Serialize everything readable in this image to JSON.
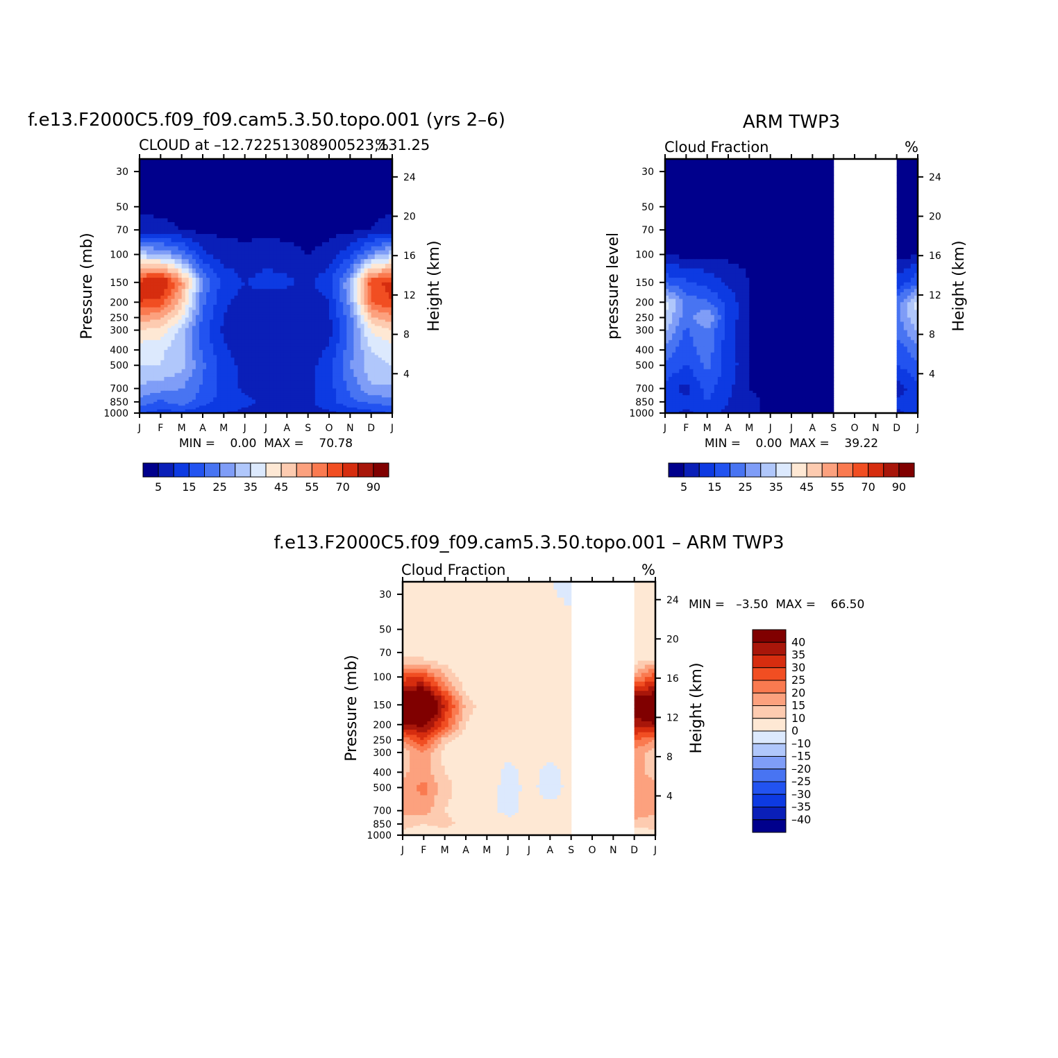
{
  "colors": {
    "model_obs_scale": [
      "#00008c",
      "#0a1fb8",
      "#0d3ae2",
      "#2253f0",
      "#4874f2",
      "#7f9df7",
      "#b0c7fb",
      "#dce9fd",
      "#fee8d4",
      "#fdcbb0",
      "#fca17e",
      "#fa7a50",
      "#f14e22",
      "#d62d0f",
      "#a8160a",
      "#800000"
    ],
    "diff_scale": [
      "#00008c",
      "#0a1fb8",
      "#0d3ae2",
      "#2253f0",
      "#4874f2",
      "#7f9df7",
      "#b0c7fb",
      "#dce9fd",
      "#fee8d4",
      "#fdcbb0",
      "#fca17e",
      "#fa7a50",
      "#f14e22",
      "#d62d0f",
      "#a8160a",
      "#800000"
    ]
  },
  "panels": {
    "model": {
      "title": "f.e13.F2000C5.f09_f09.cam5.3.50.topo.001 (yrs 2–6)",
      "subtitle": "CLOUD at –12.72251308900523,131.25",
      "units": "%",
      "ylabel": "Pressure (mb)",
      "y2label": "Height (km)",
      "minmax": "MIN =    0.00  MAX =    70.78"
    },
    "obs": {
      "title": "ARM TWP3",
      "subtitle": "Cloud Fraction",
      "units": "%",
      "ylabel": "pressure level",
      "y2label": "Height (km)",
      "minmax": "MIN =    0.00  MAX =    39.22"
    },
    "diff": {
      "title": "f.e13.F2000C5.f09_f09.cam5.3.50.topo.001 – ARM TWP3",
      "subtitle": "Cloud Fraction",
      "units": "%",
      "ylabel": "Pressure (mb)",
      "y2label": "Height (km)",
      "minmax": "MIN =   –3.50  MAX =    66.50"
    }
  },
  "chart_data": [
    {
      "type": "heatmap",
      "title": "f.e13.F2000C5.f09_f09.cam5.3.50.topo.001 (yrs 2–6)",
      "subtitle": "CLOUD at –12.72251308900523,131.25",
      "units": "%",
      "x_ticks": [
        "J",
        "F",
        "M",
        "A",
        "M",
        "J",
        "J",
        "A",
        "S",
        "O",
        "N",
        "D",
        "J"
      ],
      "y_ticks": [
        30,
        50,
        70,
        100,
        150,
        200,
        250,
        300,
        400,
        500,
        700,
        850,
        1000
      ],
      "y2_ticks": [
        24,
        20,
        16,
        12,
        8,
        4
      ],
      "ylabel": "Pressure (mb)",
      "y2label": "Height (km)",
      "y_scale": "log",
      "ylim": [
        1000,
        25
      ],
      "min": 0.0,
      "max": 70.78,
      "colorbar_labels": [
        "5",
        "15",
        "25",
        "35",
        "45",
        "55",
        "70",
        "90"
      ],
      "levels": [
        1,
        5,
        10,
        15,
        20,
        25,
        30,
        35,
        40,
        45,
        50,
        55,
        60,
        70,
        80,
        90
      ],
      "pressure_levels": [
        25,
        50,
        70,
        100,
        150,
        200,
        250,
        300,
        400,
        500,
        700,
        850,
        1000
      ],
      "months": [
        "J",
        "F",
        "M",
        "A",
        "M",
        "J",
        "J",
        "A",
        "S",
        "O",
        "N",
        "D",
        "J"
      ],
      "values": [
        [
          0,
          0,
          0,
          0,
          0,
          0,
          0,
          0,
          0,
          0,
          0,
          0,
          0
        ],
        [
          0,
          0,
          0,
          0,
          0,
          0,
          0,
          0,
          0,
          0,
          0,
          0,
          0
        ],
        [
          3,
          2,
          1,
          0,
          0,
          0,
          0,
          0,
          0,
          0,
          0,
          1,
          3
        ],
        [
          28,
          25,
          18,
          6,
          3,
          2,
          3,
          2,
          1,
          2,
          8,
          20,
          28
        ],
        [
          62,
          68,
          50,
          20,
          8,
          5,
          7,
          6,
          4,
          8,
          25,
          58,
          62
        ],
        [
          60,
          58,
          42,
          16,
          6,
          3,
          2,
          2,
          2,
          5,
          22,
          55,
          60
        ],
        [
          48,
          46,
          36,
          14,
          5,
          1,
          1,
          1,
          1,
          4,
          18,
          44,
          48
        ],
        [
          40,
          38,
          28,
          12,
          4,
          1,
          1,
          1,
          1,
          3,
          16,
          36,
          40
        ],
        [
          32,
          31,
          26,
          14,
          6,
          2,
          1,
          1,
          2,
          6,
          18,
          30,
          32
        ],
        [
          30,
          30,
          27,
          16,
          8,
          3,
          1,
          1,
          3,
          8,
          20,
          28,
          30
        ],
        [
          24,
          22,
          20,
          14,
          8,
          4,
          3,
          2,
          3,
          8,
          16,
          24,
          24
        ],
        [
          18,
          14,
          18,
          12,
          8,
          6,
          4,
          3,
          4,
          8,
          14,
          16,
          18
        ],
        [
          10,
          8,
          8,
          6,
          5,
          4,
          3,
          3,
          3,
          4,
          6,
          8,
          10
        ]
      ]
    },
    {
      "type": "heatmap",
      "title": "ARM TWP3",
      "subtitle": "Cloud Fraction",
      "units": "%",
      "x_ticks": [
        "J",
        "F",
        "M",
        "A",
        "M",
        "J",
        "J",
        "A",
        "S",
        "O",
        "N",
        "D",
        "J"
      ],
      "y_ticks": [
        30,
        50,
        70,
        100,
        150,
        200,
        250,
        300,
        400,
        500,
        700,
        850,
        1000
      ],
      "y2_ticks": [
        24,
        20,
        16,
        12,
        8,
        4
      ],
      "ylabel": "pressure level",
      "y2label": "Height (km)",
      "y_scale": "log",
      "ylim": [
        1000,
        25
      ],
      "min": 0.0,
      "max": 39.22,
      "missing_months": [
        "S",
        "O"
      ],
      "colorbar_labels": [
        "5",
        "15",
        "25",
        "35",
        "45",
        "55",
        "70",
        "90"
      ],
      "levels": [
        1,
        5,
        10,
        15,
        20,
        25,
        30,
        35,
        40,
        45,
        50,
        55,
        60,
        70,
        80,
        90
      ],
      "pressure_levels": [
        25,
        50,
        70,
        100,
        150,
        200,
        250,
        300,
        400,
        500,
        700,
        850,
        1000
      ],
      "months": [
        "J",
        "F",
        "M",
        "A",
        "M",
        "J",
        "J",
        "A",
        "S",
        "O",
        "N",
        "D",
        "J"
      ],
      "values": [
        [
          0,
          0,
          0,
          0,
          0,
          0,
          0,
          0,
          0,
          null,
          null,
          0,
          0
        ],
        [
          0,
          0,
          0,
          0,
          0,
          0,
          0,
          0,
          0,
          null,
          null,
          0,
          0
        ],
        [
          0,
          0,
          0,
          0,
          0,
          0,
          0,
          0,
          0,
          null,
          null,
          0,
          0
        ],
        [
          0,
          0,
          0,
          0,
          0,
          0,
          0,
          0,
          0,
          null,
          null,
          0,
          0
        ],
        [
          14,
          11,
          8,
          4,
          1,
          0,
          0,
          0,
          0,
          null,
          null,
          6,
          14
        ],
        [
          32,
          18,
          16,
          8,
          1,
          0,
          0,
          0,
          0,
          null,
          null,
          17,
          32
        ],
        [
          30,
          17,
          26,
          8,
          1,
          0,
          0,
          0,
          0,
          null,
          null,
          18,
          30
        ],
        [
          26,
          14,
          20,
          7,
          1,
          0,
          0,
          0,
          0,
          null,
          null,
          16,
          26
        ],
        [
          18,
          12,
          18,
          7,
          1,
          0,
          0,
          0,
          0,
          null,
          null,
          12,
          18
        ],
        [
          14,
          10,
          16,
          8,
          1,
          0,
          0,
          0,
          0,
          null,
          null,
          10,
          14
        ],
        [
          8,
          3,
          12,
          6,
          1,
          0,
          0,
          0,
          0,
          null,
          null,
          2,
          8
        ],
        [
          10,
          6,
          10,
          5,
          2,
          0,
          0,
          0,
          0,
          null,
          null,
          6,
          10
        ],
        [
          6,
          4,
          6,
          4,
          2,
          0,
          0,
          0,
          0,
          null,
          null,
          4,
          6
        ]
      ]
    },
    {
      "type": "heatmap",
      "title": "f.e13.F2000C5.f09_f09.cam5.3.50.topo.001 – ARM TWP3",
      "subtitle": "Cloud Fraction",
      "units": "%",
      "x_ticks": [
        "J",
        "F",
        "M",
        "A",
        "M",
        "J",
        "J",
        "A",
        "S",
        "O",
        "N",
        "D",
        "J"
      ],
      "y_ticks": [
        30,
        50,
        70,
        100,
        150,
        200,
        250,
        300,
        400,
        500,
        700,
        850,
        1000
      ],
      "y2_ticks": [
        24,
        20,
        16,
        12,
        8,
        4
      ],
      "ylabel": "Pressure (mb)",
      "y2label": "Height (km)",
      "y_scale": "log",
      "ylim": [
        1000,
        25
      ],
      "min": -3.5,
      "max": 66.5,
      "missing_months": [
        "S",
        "O"
      ],
      "colorbar_labels": [
        "40",
        "35",
        "30",
        "25",
        "20",
        "15",
        "10",
        "0",
        "–10",
        "–15",
        "–20",
        "–25",
        "–30",
        "–35",
        "–40"
      ],
      "levels": [
        -40,
        -35,
        -30,
        -25,
        -20,
        -15,
        -10,
        0,
        10,
        15,
        20,
        25,
        30,
        35,
        40
      ],
      "pressure_levels": [
        25,
        50,
        70,
        100,
        150,
        200,
        250,
        300,
        400,
        500,
        700,
        850,
        1000
      ],
      "months": [
        "J",
        "F",
        "M",
        "A",
        "M",
        "J",
        "J",
        "A",
        "S",
        "O",
        "N",
        "D",
        "J"
      ],
      "values": [
        [
          0,
          0,
          0,
          0,
          0,
          0,
          0,
          0,
          -1,
          null,
          null,
          0,
          0
        ],
        [
          2,
          2,
          2,
          2,
          1,
          1,
          1,
          1,
          1,
          null,
          null,
          2,
          2
        ],
        [
          4,
          4,
          3,
          2,
          2,
          2,
          2,
          2,
          2,
          null,
          null,
          3,
          4
        ],
        [
          28,
          28,
          16,
          5,
          3,
          2,
          2,
          2,
          2,
          null,
          null,
          18,
          28
        ],
        [
          50,
          60,
          34,
          14,
          5,
          4,
          4,
          4,
          4,
          null,
          null,
          48,
          50
        ],
        [
          40,
          42,
          28,
          10,
          4,
          3,
          2,
          2,
          2,
          null,
          null,
          36,
          40
        ],
        [
          20,
          30,
          12,
          6,
          3,
          2,
          2,
          2,
          2,
          null,
          null,
          26,
          20
        ],
        [
          12,
          20,
          8,
          5,
          3,
          2,
          2,
          2,
          2,
          null,
          null,
          18,
          12
        ],
        [
          14,
          18,
          10,
          6,
          4,
          -2,
          2,
          -2,
          2,
          null,
          null,
          16,
          14
        ],
        [
          16,
          22,
          12,
          7,
          4,
          -3,
          2,
          -3,
          2,
          null,
          null,
          16,
          16
        ],
        [
          16,
          18,
          10,
          7,
          2,
          -2,
          2,
          2,
          2,
          null,
          null,
          20,
          16
        ],
        [
          12,
          10,
          12,
          8,
          6,
          2,
          2,
          2,
          2,
          null,
          null,
          12,
          12
        ],
        [
          8,
          6,
          6,
          4,
          3,
          3,
          2,
          2,
          2,
          null,
          null,
          6,
          8
        ]
      ]
    }
  ]
}
